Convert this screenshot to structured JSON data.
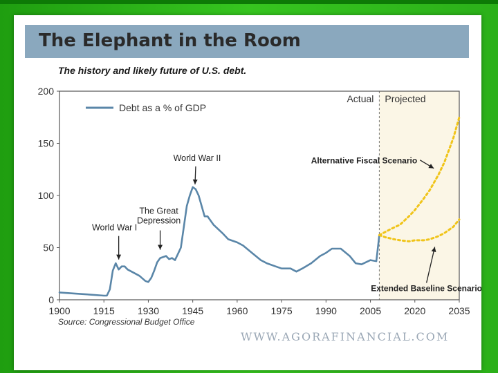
{
  "header": {
    "title": "The Elephant in the Room",
    "subtitle": "The history and likely future of U.S. debt."
  },
  "footer": {
    "source": "Source: Congressional Budget Office",
    "watermark": "WWW.AGORAFINANCIAL.COM"
  },
  "colors": {
    "slide_background": "#2fb81c",
    "title_bar": "#8aa8be",
    "debt_line": "#5a86a8",
    "projection_line": "#f0c419",
    "projected_shade": "#fbf6e6"
  },
  "chart_data": {
    "type": "line",
    "title": "The history and likely future of U.S. debt.",
    "xlabel": "",
    "ylabel": "",
    "xlim": [
      1900,
      2035
    ],
    "ylim": [
      0,
      200
    ],
    "x_ticks": [
      1900,
      1915,
      1930,
      1945,
      1960,
      1975,
      1990,
      2005,
      2020,
      2035
    ],
    "y_ticks": [
      0,
      50,
      100,
      150,
      200
    ],
    "grid": false,
    "legend": {
      "placement": "top-left",
      "entries": [
        "Debt as a % of GDP"
      ]
    },
    "regions": [
      {
        "label": "Actual",
        "from": 1900,
        "to": 2008
      },
      {
        "label": "Projected",
        "from": 2008,
        "to": 2035
      }
    ],
    "series": [
      {
        "name": "Debt as a % of GDP",
        "style": "solid",
        "x": [
          1900,
          1905,
          1910,
          1915,
          1916,
          1917,
          1918,
          1919,
          1920,
          1921,
          1922,
          1923,
          1925,
          1927,
          1929,
          1930,
          1931,
          1932,
          1933,
          1934,
          1936,
          1937,
          1938,
          1939,
          1940,
          1941,
          1942,
          1943,
          1944,
          1945,
          1946,
          1947,
          1948,
          1949,
          1950,
          1952,
          1955,
          1957,
          1960,
          1962,
          1965,
          1968,
          1970,
          1973,
          1975,
          1978,
          1980,
          1982,
          1985,
          1988,
          1990,
          1992,
          1995,
          1998,
          2000,
          2002,
          2005,
          2007,
          2008
        ],
        "y": [
          7,
          6,
          5,
          4,
          4,
          10,
          28,
          35,
          29,
          32,
          32,
          29,
          26,
          23,
          18,
          17,
          21,
          28,
          36,
          40,
          42,
          39,
          40,
          38,
          44,
          50,
          70,
          90,
          100,
          108,
          106,
          100,
          90,
          80,
          80,
          72,
          64,
          58,
          55,
          52,
          45,
          38,
          35,
          32,
          30,
          30,
          27,
          30,
          35,
          42,
          45,
          49,
          49,
          42,
          35,
          34,
          38,
          37,
          62
        ]
      },
      {
        "name": "Alternative Fiscal Scenario",
        "style": "dotted",
        "x": [
          2008,
          2012,
          2015,
          2018,
          2020,
          2023,
          2025,
          2028,
          2030,
          2033,
          2035
        ],
        "y": [
          62,
          68,
          72,
          80,
          86,
          97,
          105,
          120,
          132,
          155,
          175
        ]
      },
      {
        "name": "Extended Baseline Scenario",
        "style": "dotted",
        "x": [
          2008,
          2010,
          2013,
          2015,
          2018,
          2020,
          2023,
          2025,
          2028,
          2030,
          2033,
          2035
        ],
        "y": [
          62,
          60,
          58,
          57,
          56,
          57,
          57,
          58,
          61,
          64,
          70,
          77
        ]
      }
    ],
    "annotations": [
      {
        "text": "World War I",
        "lines": [
          "World War I"
        ],
        "x": 1920,
        "y": 32
      },
      {
        "text": "The Great Depression",
        "lines": [
          "The Great",
          "Depression"
        ],
        "x": 1934,
        "y": 44
      },
      {
        "text": "World War II",
        "lines": [
          "World War II"
        ],
        "x": 1946,
        "y": 108
      },
      {
        "text": "Alternative Fiscal Scenario",
        "lines": [
          "Alternative Fiscal Scenario"
        ],
        "x": 2025,
        "y": 122
      },
      {
        "text": "Extended Baseline Scenario",
        "lines": [
          "Extended Baseline Scenario"
        ],
        "x": 2023,
        "y": 56
      }
    ]
  }
}
